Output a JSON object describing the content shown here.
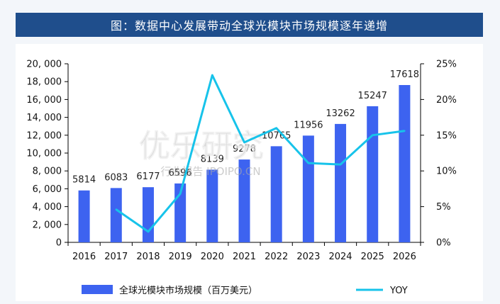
{
  "title": "图：数据中心发展带动全球光模块市场规模逐年递增",
  "watermark": {
    "main": "优乐研究",
    "sub": "行业报告 IPOIPO.CN"
  },
  "colors": {
    "bar": "#3d63f0",
    "line": "#17c3ea",
    "banner": "#1f4e8c"
  },
  "chart_data": {
    "type": "bar",
    "categories": [
      "2016",
      "2017",
      "2018",
      "2019",
      "2020",
      "2021",
      "2022",
      "2023",
      "2024",
      "2025",
      "2026"
    ],
    "series": [
      {
        "name": "全球光模块市场规模（百万美元）",
        "type": "bar",
        "axis": "left",
        "values": [
          5814,
          6083,
          6177,
          6596,
          8139,
          9278,
          10765,
          11956,
          13262,
          15247,
          17618
        ],
        "labels": [
          "5814",
          "6083",
          "6177",
          "6596",
          "8139",
          "9278",
          "10765",
          "11956",
          "13262",
          "15247",
          "17618"
        ]
      },
      {
        "name": "YOY",
        "type": "line",
        "axis": "right",
        "values": [
          null,
          4.6,
          1.5,
          6.8,
          23.4,
          14.0,
          16.0,
          11.1,
          10.9,
          15.0,
          15.6
        ]
      }
    ],
    "y_left": {
      "lim": [
        0,
        20000
      ],
      "ticks": [
        0,
        2000,
        4000,
        6000,
        8000,
        10000,
        12000,
        14000,
        16000,
        18000,
        20000
      ],
      "tick_labels": [
        "0",
        "2, 000",
        "4, 000",
        "6, 000",
        "8, 000",
        "10, 000",
        "12, 000",
        "14, 000",
        "16, 000",
        "18, 000",
        "20, 000"
      ]
    },
    "y_right": {
      "lim": [
        0,
        25
      ],
      "ticks": [
        0,
        5,
        10,
        15,
        20,
        25
      ],
      "tick_labels": [
        "0%",
        "5%",
        "10%",
        "15%",
        "20%",
        "25%"
      ]
    },
    "legend_position": "bottom",
    "grid": false
  }
}
